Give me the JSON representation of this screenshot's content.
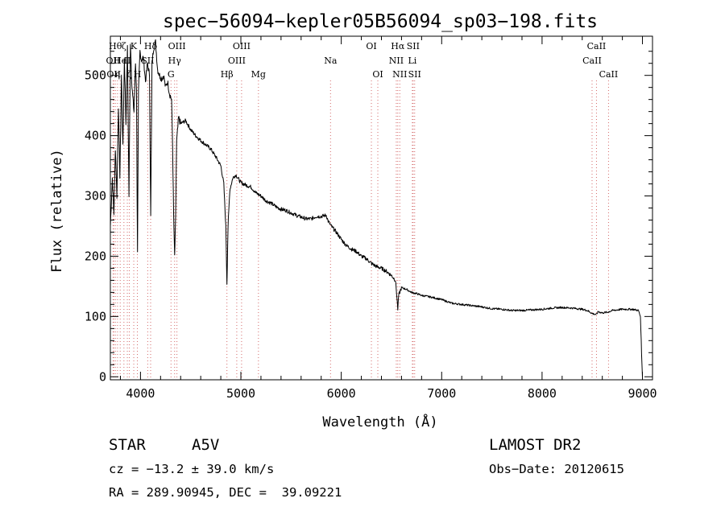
{
  "chart_data": {
    "type": "line",
    "title": "spec−56094−kepler05B56094_sp03−198.fits",
    "xlabel": "Wavelength (Å)",
    "ylabel": "Flux (relative)",
    "xlim": [
      3700,
      9100
    ],
    "ylim": [
      -5,
      565
    ],
    "x_ticks": [
      4000,
      5000,
      6000,
      7000,
      8000,
      9000
    ],
    "y_ticks": [
      0,
      100,
      200,
      300,
      400,
      500
    ],
    "grid": false,
    "line_color": "#000000",
    "marker_color": "#d46a6a",
    "series": [
      {
        "values": [
          [
            3700,
            250
          ],
          [
            3720,
            330
          ],
          [
            3735,
            270
          ],
          [
            3750,
            380
          ],
          [
            3765,
            300
          ],
          [
            3780,
            450
          ],
          [
            3795,
            330
          ],
          [
            3810,
            500
          ],
          [
            3825,
            380
          ],
          [
            3840,
            530
          ],
          [
            3855,
            420
          ],
          [
            3870,
            545
          ],
          [
            3885,
            300
          ],
          [
            3900,
            555
          ],
          [
            3915,
            480
          ],
          [
            3935,
            440
          ],
          [
            3950,
            520
          ],
          [
            3960,
            480
          ],
          [
            3970,
            210
          ],
          [
            3980,
            470
          ],
          [
            3995,
            540
          ],
          [
            4010,
            525
          ],
          [
            4030,
            530
          ],
          [
            4050,
            490
          ],
          [
            4070,
            520
          ],
          [
            4090,
            500
          ],
          [
            4102,
            265
          ],
          [
            4115,
            520
          ],
          [
            4130,
            545
          ],
          [
            4150,
            555
          ],
          [
            4170,
            510
          ],
          [
            4190,
            500
          ],
          [
            4210,
            495
          ],
          [
            4230,
            500
          ],
          [
            4250,
            480
          ],
          [
            4270,
            490
          ],
          [
            4290,
            470
          ],
          [
            4310,
            460
          ],
          [
            4320,
            380
          ],
          [
            4330,
            270
          ],
          [
            4340,
            200
          ],
          [
            4350,
            260
          ],
          [
            4360,
            390
          ],
          [
            4380,
            430
          ],
          [
            4400,
            420
          ],
          [
            4450,
            425
          ],
          [
            4500,
            410
          ],
          [
            4550,
            400
          ],
          [
            4600,
            392
          ],
          [
            4650,
            385
          ],
          [
            4700,
            378
          ],
          [
            4750,
            365
          ],
          [
            4800,
            350
          ],
          [
            4830,
            320
          ],
          [
            4850,
            250
          ],
          [
            4861,
            155
          ],
          [
            4872,
            250
          ],
          [
            4890,
            310
          ],
          [
            4920,
            330
          ],
          [
            4950,
            335
          ],
          [
            5000,
            322
          ],
          [
            5050,
            318
          ],
          [
            5100,
            315
          ],
          [
            5150,
            305
          ],
          [
            5200,
            300
          ],
          [
            5250,
            292
          ],
          [
            5300,
            288
          ],
          [
            5350,
            282
          ],
          [
            5400,
            278
          ],
          [
            5450,
            276
          ],
          [
            5500,
            272
          ],
          [
            5550,
            268
          ],
          [
            5600,
            265
          ],
          [
            5650,
            262
          ],
          [
            5700,
            262
          ],
          [
            5750,
            266
          ],
          [
            5800,
            266
          ],
          [
            5850,
            268
          ],
          [
            5870,
            258
          ],
          [
            5900,
            250
          ],
          [
            5950,
            240
          ],
          [
            6000,
            228
          ],
          [
            6050,
            218
          ],
          [
            6100,
            212
          ],
          [
            6150,
            208
          ],
          [
            6200,
            200
          ],
          [
            6250,
            196
          ],
          [
            6300,
            188
          ],
          [
            6350,
            183
          ],
          [
            6400,
            180
          ],
          [
            6450,
            175
          ],
          [
            6500,
            168
          ],
          [
            6540,
            160
          ],
          [
            6555,
            130
          ],
          [
            6563,
            112
          ],
          [
            6572,
            135
          ],
          [
            6600,
            148
          ],
          [
            6650,
            145
          ],
          [
            6700,
            140
          ],
          [
            6750,
            138
          ],
          [
            6800,
            135
          ],
          [
            6900,
            132
          ],
          [
            7000,
            128
          ],
          [
            7100,
            122
          ],
          [
            7200,
            120
          ],
          [
            7300,
            118
          ],
          [
            7400,
            116
          ],
          [
            7500,
            113
          ],
          [
            7600,
            112
          ],
          [
            7700,
            110
          ],
          [
            7800,
            110
          ],
          [
            7900,
            111
          ],
          [
            8000,
            112
          ],
          [
            8100,
            114
          ],
          [
            8200,
            115
          ],
          [
            8300,
            114
          ],
          [
            8400,
            112
          ],
          [
            8450,
            110
          ],
          [
            8500,
            105
          ],
          [
            8540,
            103
          ],
          [
            8560,
            108
          ],
          [
            8600,
            106
          ],
          [
            8650,
            107
          ],
          [
            8700,
            110
          ],
          [
            8800,
            112
          ],
          [
            8900,
            112
          ],
          [
            8960,
            110
          ],
          [
            8980,
            100
          ],
          [
            8995,
            20
          ],
          [
            9000,
            0
          ]
        ]
      }
    ],
    "lines": [
      {
        "wavelength": 3727,
        "label": "OII",
        "row": 1
      },
      {
        "wavelength": 3734,
        "label": "OII",
        "row": 2
      },
      {
        "wavelength": 3750,
        "label": "Hθ",
        "row": 0
      },
      {
        "wavelength": 3771,
        "label": "η",
        "row": 2
      },
      {
        "wavelength": 3798,
        "label": "He",
        "row": 1
      },
      {
        "wavelength": 3835,
        "label": "ζ",
        "row": 0
      },
      {
        "wavelength": 3869,
        "label": "II",
        "row": 1
      },
      {
        "wavelength": 3889,
        "label": "ζ",
        "row": 2
      },
      {
        "wavelength": 3933,
        "label": "K",
        "row": 0
      },
      {
        "wavelength": 3969,
        "label": "H",
        "row": 2
      },
      {
        "wavelength": 4101,
        "label": "Hδ",
        "row": 0
      },
      {
        "wavelength": 4072,
        "label": "SII",
        "row": 1
      },
      {
        "wavelength": 4304,
        "label": "G",
        "row": 2
      },
      {
        "wavelength": 4340,
        "label": "Hγ",
        "row": 1
      },
      {
        "wavelength": 4363,
        "label": "OIII",
        "row": 0
      },
      {
        "wavelength": 4861,
        "label": "Hβ",
        "row": 2
      },
      {
        "wavelength": 4959,
        "label": "OIII",
        "row": 1
      },
      {
        "wavelength": 5007,
        "label": "OIII",
        "row": 0
      },
      {
        "wavelength": 5175,
        "label": "Mg",
        "row": 2
      },
      {
        "wavelength": 5893,
        "label": "Na",
        "row": 1
      },
      {
        "wavelength": 6300,
        "label": "OI",
        "row": 0
      },
      {
        "wavelength": 6364,
        "label": "OI",
        "row": 2
      },
      {
        "wavelength": 6548,
        "label": "NII",
        "row": 1
      },
      {
        "wavelength": 6563,
        "label": "Hα",
        "row": 0
      },
      {
        "wavelength": 6583,
        "label": "NII",
        "row": 2
      },
      {
        "wavelength": 6708,
        "label": "Li",
        "row": 1
      },
      {
        "wavelength": 6716,
        "label": "SII",
        "row": 0
      },
      {
        "wavelength": 6731,
        "label": "SII",
        "row": 2
      },
      {
        "wavelength": 8498,
        "label": "CaII",
        "row": 1
      },
      {
        "wavelength": 8542,
        "label": "CaII",
        "row": 0
      },
      {
        "wavelength": 8662,
        "label": "CaII",
        "row": 2
      }
    ]
  },
  "info": {
    "object_class": "STAR",
    "subclass": "A5V",
    "survey": "LAMOST DR2",
    "redshift": "cz = −13.2 ± 39.0 km/s",
    "obs_date": "Obs−Date: 20120615",
    "coords": "RA = 289.90945, DEC =  39.09221"
  }
}
